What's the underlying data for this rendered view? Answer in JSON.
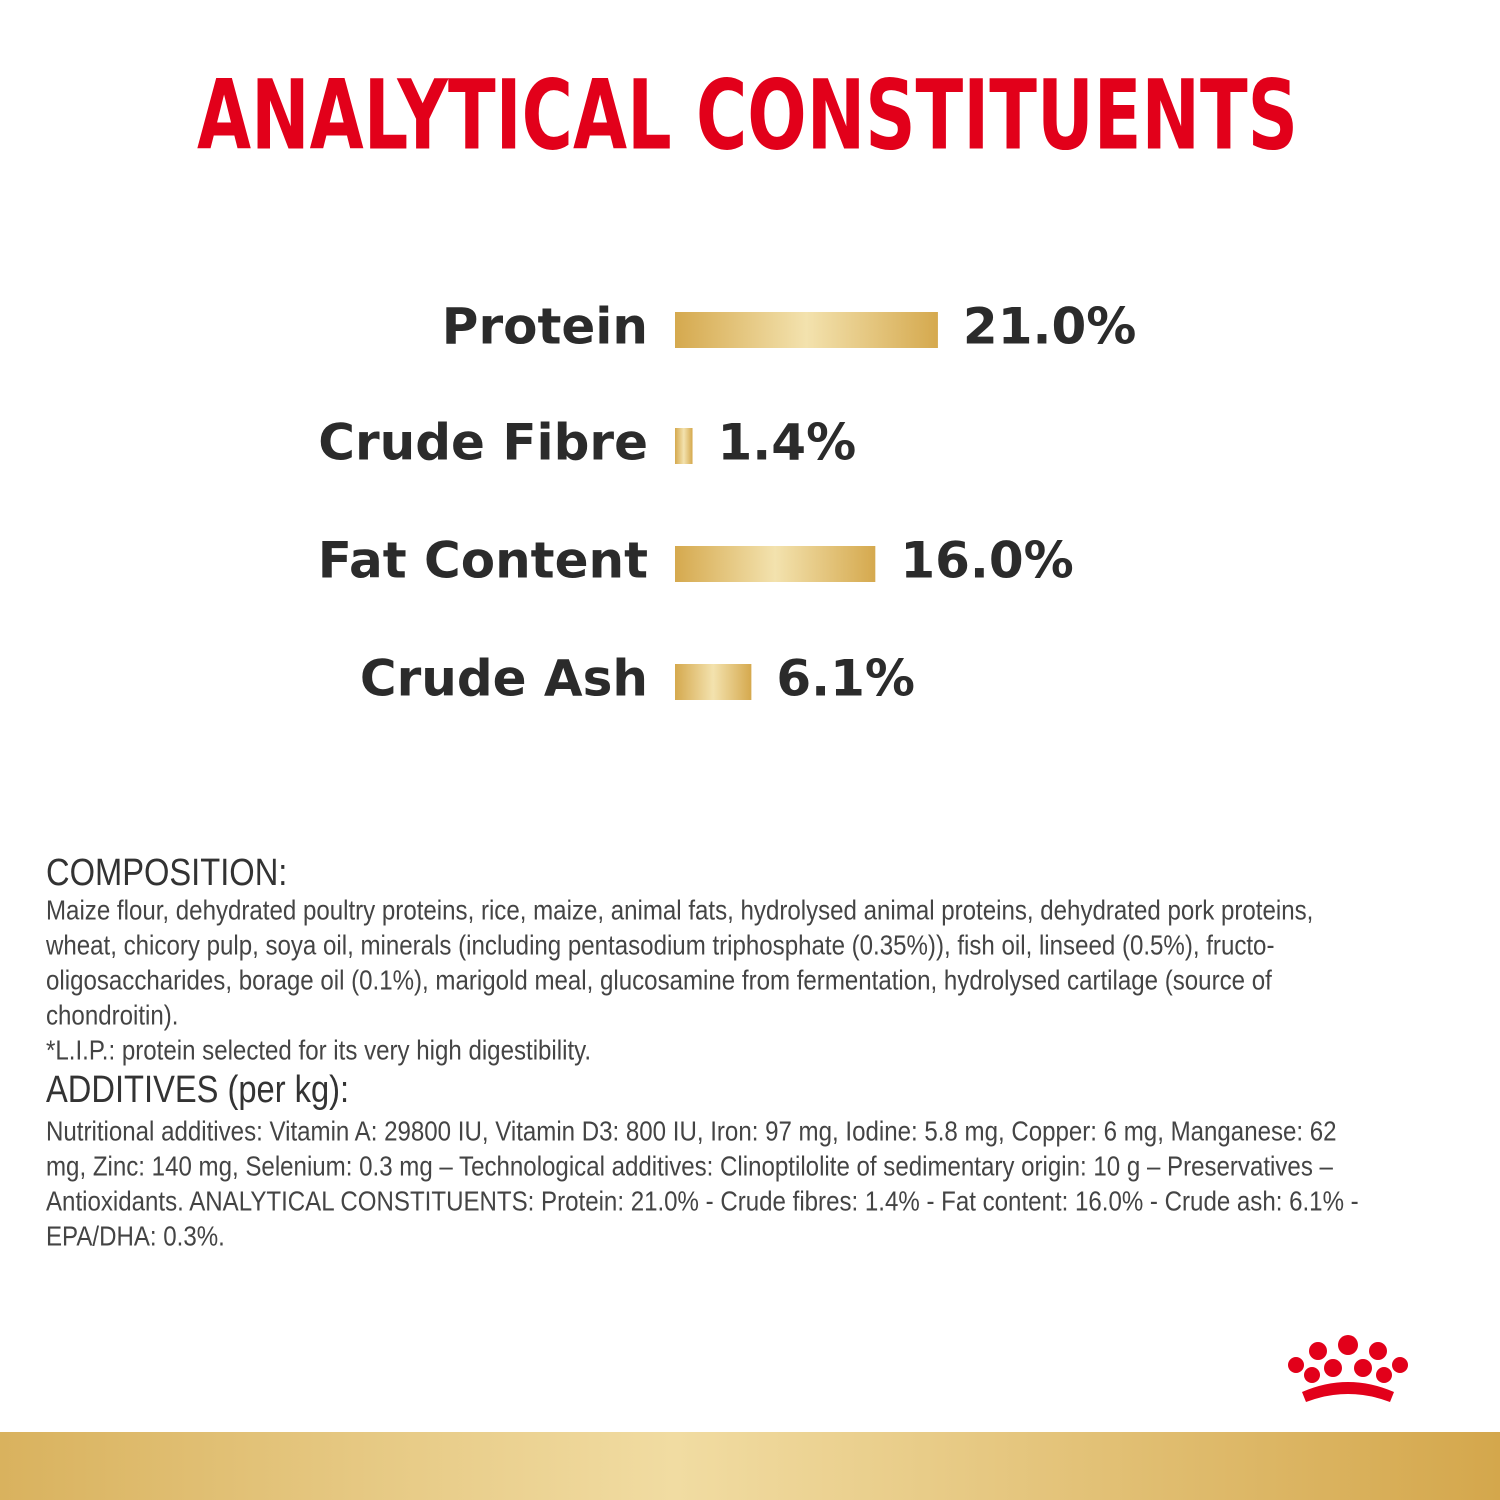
{
  "chart_data": {
    "type": "bar",
    "orientation": "horizontal",
    "title": "ANALYTICAL CONSTITUENTS",
    "categories": [
      "Protein",
      "Crude Fibre",
      "Fat Content",
      "Crude Ash"
    ],
    "values": [
      21.0,
      1.4,
      16.0,
      6.1
    ],
    "value_labels": [
      "21.0%",
      "1.4%",
      "16.0%",
      "6.1%"
    ],
    "color": "#d5a94e"
  },
  "composition": {
    "heading": "COMPOSITION:",
    "lines": [
      "Maize flour, dehydrated poultry proteins, rice, maize, animal fats, hydrolysed animal proteins, dehydrated pork proteins,",
      "wheat, chicory pulp, soya oil, minerals (including pentasodium triphosphate (0.35%)), fish oil, linseed (0.5%), fructo-",
      "oligosaccharides, borage oil (0.1%), marigold meal, glucosamine from fermentation, hydrolysed cartilage (source of",
      "chondroitin).",
      "*L.I.P.: protein selected for its very high digestibility."
    ]
  },
  "additives": {
    "heading": "ADDITIVES (per kg):",
    "lines": [
      "Nutritional additives: Vitamin A: 29800 IU, Vitamin D3: 800 IU, Iron: 97 mg, Iodine: 5.8 mg, Copper: 6 mg, Manganese: 62",
      "mg, Zinc: 140 mg, Selenium: 0.3 mg – Technological additives: Clinoptilolite of sedimentary origin: 10 g – Preservatives –",
      "Antioxidants. ANALYTICAL CONSTITUENTS: Protein: 21.0% - Crude fibres: 1.4% - Fat content: 16.0% - Crude ash: 6.1% -",
      "EPA/DHA: 0.3%."
    ]
  }
}
